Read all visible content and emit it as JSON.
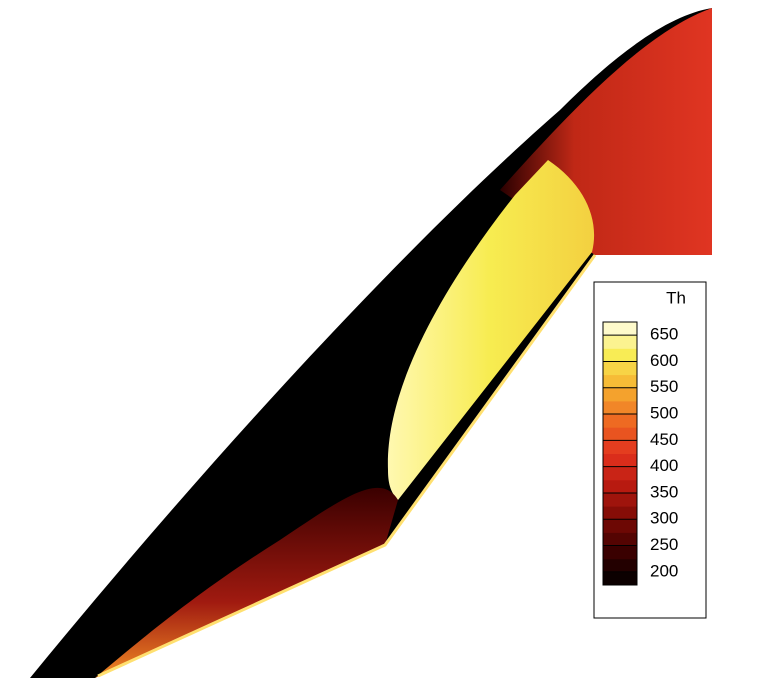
{
  "chart_data": {
    "type": "contour",
    "colorbar": {
      "title": "Th",
      "clim": [
        175,
        675
      ],
      "ticks": [
        200,
        250,
        300,
        350,
        400,
        450,
        500,
        550,
        600,
        650
      ],
      "levels": 20
    },
    "colormap": [
      "#000000",
      "#3a0000",
      "#7a0a05",
      "#b81a10",
      "#e2321e",
      "#ee6a22",
      "#f5b030",
      "#f8ec55",
      "#fffde8"
    ]
  }
}
